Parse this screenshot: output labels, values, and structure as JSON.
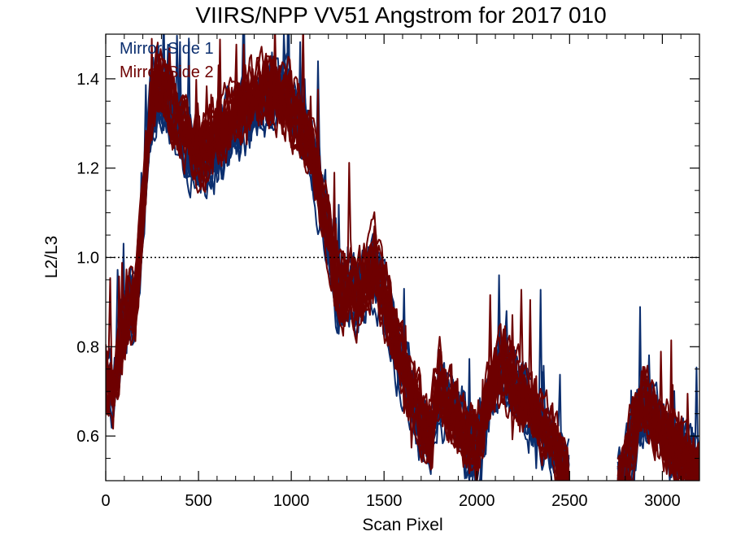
{
  "chart_data": {
    "type": "line",
    "title": "VIIRS/NPP VV51 Angstrom for 2017 010",
    "xlabel": "Scan Pixel",
    "ylabel": "L2/L3",
    "xlim": [
      0,
      3200
    ],
    "ylim": [
      0.5,
      1.5
    ],
    "xticks": [
      0,
      500,
      1000,
      1500,
      2000,
      2500,
      3000
    ],
    "yticks": [
      0.6,
      0.8,
      1.0,
      1.2,
      1.4
    ],
    "ytick_labels": [
      "0.6",
      "0.8",
      "1.0",
      "1.2",
      "1.4"
    ],
    "reference_line": {
      "y": 1.0,
      "style": "dotted",
      "color": "#000000"
    },
    "legend": {
      "placement": "top-left"
    },
    "traces_per_series": 16,
    "series": [
      {
        "name": "Mirror-Side 1",
        "color": "#0b2e6e",
        "profile": [
          [
            0,
            0.72
          ],
          [
            40,
            0.68
          ],
          [
            80,
            0.82
          ],
          [
            120,
            0.9
          ],
          [
            160,
            0.88
          ],
          [
            200,
            1.08
          ],
          [
            240,
            1.3
          ],
          [
            280,
            1.36
          ],
          [
            320,
            1.34
          ],
          [
            360,
            1.3
          ],
          [
            400,
            1.28
          ],
          [
            450,
            1.24
          ],
          [
            500,
            1.2
          ],
          [
            560,
            1.22
          ],
          [
            620,
            1.25
          ],
          [
            680,
            1.28
          ],
          [
            740,
            1.3
          ],
          [
            800,
            1.33
          ],
          [
            860,
            1.35
          ],
          [
            920,
            1.36
          ],
          [
            980,
            1.35
          ],
          [
            1040,
            1.3
          ],
          [
            1100,
            1.25
          ],
          [
            1150,
            1.15
          ],
          [
            1200,
            1.05
          ],
          [
            1240,
            0.93
          ],
          [
            1280,
            0.9
          ],
          [
            1320,
            0.93
          ],
          [
            1360,
            0.9
          ],
          [
            1400,
            0.95
          ],
          [
            1450,
            0.98
          ],
          [
            1500,
            0.9
          ],
          [
            1550,
            0.82
          ],
          [
            1600,
            0.75
          ],
          [
            1650,
            0.68
          ],
          [
            1700,
            0.62
          ],
          [
            1750,
            0.58
          ],
          [
            1800,
            0.7
          ],
          [
            1850,
            0.65
          ],
          [
            1900,
            0.62
          ],
          [
            1950,
            0.58
          ],
          [
            2000,
            0.55
          ],
          [
            2050,
            0.65
          ],
          [
            2100,
            0.72
          ],
          [
            2150,
            0.75
          ],
          [
            2200,
            0.7
          ],
          [
            2250,
            0.68
          ],
          [
            2300,
            0.65
          ],
          [
            2350,
            0.62
          ],
          [
            2400,
            0.58
          ],
          [
            2450,
            0.54
          ],
          [
            2500,
            0.5
          ]
        ],
        "profile_tail": [
          [
            2760,
            0.5
          ],
          [
            2800,
            0.53
          ],
          [
            2850,
            0.6
          ],
          [
            2900,
            0.66
          ],
          [
            2950,
            0.64
          ],
          [
            3000,
            0.6
          ],
          [
            3050,
            0.57
          ],
          [
            3100,
            0.56
          ],
          [
            3150,
            0.53
          ],
          [
            3200,
            0.52
          ]
        ]
      },
      {
        "name": "Mirror-Side 2",
        "color": "#6e0000",
        "profile": [
          [
            0,
            0.74
          ],
          [
            40,
            0.7
          ],
          [
            80,
            0.8
          ],
          [
            120,
            0.88
          ],
          [
            160,
            0.9
          ],
          [
            200,
            1.12
          ],
          [
            240,
            1.32
          ],
          [
            280,
            1.4
          ],
          [
            320,
            1.38
          ],
          [
            360,
            1.33
          ],
          [
            400,
            1.3
          ],
          [
            450,
            1.27
          ],
          [
            500,
            1.24
          ],
          [
            560,
            1.26
          ],
          [
            620,
            1.29
          ],
          [
            680,
            1.32
          ],
          [
            740,
            1.34
          ],
          [
            800,
            1.37
          ],
          [
            860,
            1.38
          ],
          [
            920,
            1.37
          ],
          [
            980,
            1.36
          ],
          [
            1040,
            1.31
          ],
          [
            1100,
            1.26
          ],
          [
            1150,
            1.16
          ],
          [
            1200,
            1.06
          ],
          [
            1240,
            0.95
          ],
          [
            1280,
            0.92
          ],
          [
            1320,
            0.94
          ],
          [
            1360,
            0.92
          ],
          [
            1400,
            0.96
          ],
          [
            1450,
            0.99
          ],
          [
            1500,
            0.92
          ],
          [
            1550,
            0.84
          ],
          [
            1600,
            0.77
          ],
          [
            1650,
            0.7
          ],
          [
            1700,
            0.64
          ],
          [
            1750,
            0.6
          ],
          [
            1800,
            0.72
          ],
          [
            1850,
            0.66
          ],
          [
            1900,
            0.63
          ],
          [
            1950,
            0.6
          ],
          [
            2000,
            0.58
          ],
          [
            2050,
            0.67
          ],
          [
            2100,
            0.74
          ],
          [
            2150,
            0.76
          ],
          [
            2200,
            0.71
          ],
          [
            2250,
            0.69
          ],
          [
            2300,
            0.66
          ],
          [
            2350,
            0.63
          ],
          [
            2400,
            0.59
          ],
          [
            2450,
            0.55
          ],
          [
            2500,
            0.5
          ]
        ],
        "profile_tail": [
          [
            2760,
            0.5
          ],
          [
            2800,
            0.54
          ],
          [
            2850,
            0.62
          ],
          [
            2900,
            0.68
          ],
          [
            2950,
            0.65
          ],
          [
            3000,
            0.61
          ],
          [
            3050,
            0.58
          ],
          [
            3100,
            0.57
          ],
          [
            3150,
            0.54
          ],
          [
            3200,
            0.52
          ]
        ]
      }
    ]
  }
}
